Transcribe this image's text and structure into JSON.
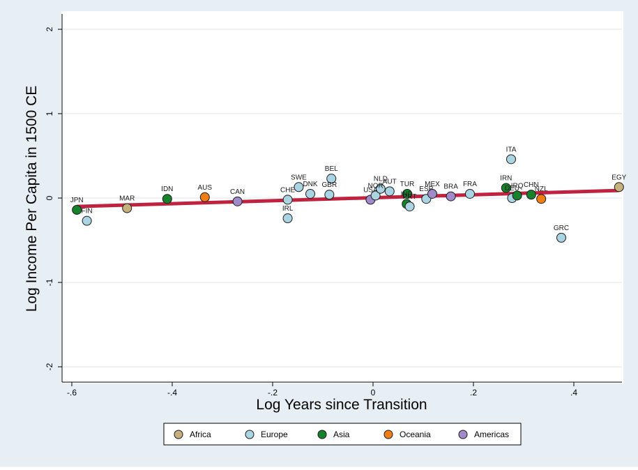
{
  "chart_data": {
    "type": "scatter",
    "title": "",
    "xlabel": "Log Years since Transition",
    "ylabel": "Log Income Per Capita in 1500 CE",
    "xlim": [
      -0.62,
      0.52
    ],
    "ylim": [
      -2.15,
      2.15
    ],
    "xticks": [
      -0.6,
      -0.4,
      -0.2,
      0,
      0.2,
      0.4
    ],
    "xtick_labels": [
      "-.6",
      "-.4",
      "-.2",
      "0",
      ".2",
      ".4"
    ],
    "yticks": [
      -2,
      -1,
      0,
      1,
      2
    ],
    "ytick_labels": [
      "-2",
      "-1",
      "0",
      "1",
      "2"
    ],
    "grid": "horizontal",
    "legend_position": "bottom",
    "colors": {
      "background": "#e8eff4",
      "plot_background": "#ffffff",
      "gridline": "#e3ebf0",
      "fit_line": "#c0233f",
      "Africa": "#c6b17c",
      "Europe": "#aad4e2",
      "Asia": "#16832c",
      "Oceania": "#f07e17",
      "Americas": "#9f8bc9"
    },
    "regions": [
      "Africa",
      "Europe",
      "Asia",
      "Oceania",
      "Americas"
    ],
    "fit_line": {
      "x": [
        -0.59,
        0.49
      ],
      "y": [
        -0.1,
        0.09
      ]
    },
    "points": [
      {
        "label": "JPN",
        "region": "Asia",
        "x": -0.59,
        "y": -0.14
      },
      {
        "label": "FIN",
        "region": "Europe",
        "x": -0.57,
        "y": -0.27
      },
      {
        "label": "MAR",
        "region": "Africa",
        "x": -0.49,
        "y": -0.12
      },
      {
        "label": "IDN",
        "region": "Asia",
        "x": -0.41,
        "y": -0.01
      },
      {
        "label": "AUS",
        "region": "Oceania",
        "x": -0.335,
        "y": 0.01
      },
      {
        "label": "CAN",
        "region": "Americas",
        "x": -0.27,
        "y": -0.04
      },
      {
        "label": "CHE",
        "region": "Europe",
        "x": -0.17,
        "y": -0.02
      },
      {
        "label": "IRL",
        "region": "Europe",
        "x": -0.17,
        "y": -0.24
      },
      {
        "label": "SWE",
        "region": "Europe",
        "x": -0.148,
        "y": 0.13
      },
      {
        "label": "DNK",
        "region": "Europe",
        "x": -0.125,
        "y": 0.05
      },
      {
        "label": "GBR",
        "region": "Europe",
        "x": -0.087,
        "y": 0.04
      },
      {
        "label": "BEL",
        "region": "Europe",
        "x": -0.083,
        "y": 0.23
      },
      {
        "label": "USA",
        "region": "Americas",
        "x": -0.005,
        "y": -0.02
      },
      {
        "label": "NOR",
        "region": "Europe",
        "x": 0.005,
        "y": 0.03
      },
      {
        "label": "NLD",
        "region": "Europe",
        "x": 0.015,
        "y": 0.11
      },
      {
        "label": "AUT",
        "region": "Europe",
        "x": 0.033,
        "y": 0.08
      },
      {
        "label": "TUR",
        "region": "Asia",
        "x": 0.068,
        "y": 0.05
      },
      {
        "label": "IND",
        "region": "Asia",
        "x": 0.067,
        "y": -0.07
      },
      {
        "label": "PRT",
        "region": "Europe",
        "x": 0.073,
        "y": -0.1
      },
      {
        "label": "ESP",
        "region": "Europe",
        "x": 0.106,
        "y": -0.01
      },
      {
        "label": "MEX",
        "region": "Americas",
        "x": 0.118,
        "y": 0.05
      },
      {
        "label": "BRA",
        "region": "Americas",
        "x": 0.155,
        "y": 0.02
      },
      {
        "label": "FRA",
        "region": "Europe",
        "x": 0.193,
        "y": 0.05
      },
      {
        "label": "IRN",
        "region": "Asia",
        "x": 0.265,
        "y": 0.12
      },
      {
        "label": "ITA",
        "region": "Europe",
        "x": 0.275,
        "y": 0.46
      },
      {
        "label": "DEU",
        "region": "Europe",
        "x": 0.277,
        "y": 0.0
      },
      {
        "label": "IRQ",
        "region": "Asia",
        "x": 0.287,
        "y": 0.03
      },
      {
        "label": "CHN",
        "region": "Asia",
        "x": 0.315,
        "y": 0.04
      },
      {
        "label": "NZL",
        "region": "Oceania",
        "x": 0.335,
        "y": -0.01
      },
      {
        "label": "GRC",
        "region": "Europe",
        "x": 0.375,
        "y": -0.47
      },
      {
        "label": "EGY",
        "region": "Africa",
        "x": 0.49,
        "y": 0.13
      }
    ]
  }
}
